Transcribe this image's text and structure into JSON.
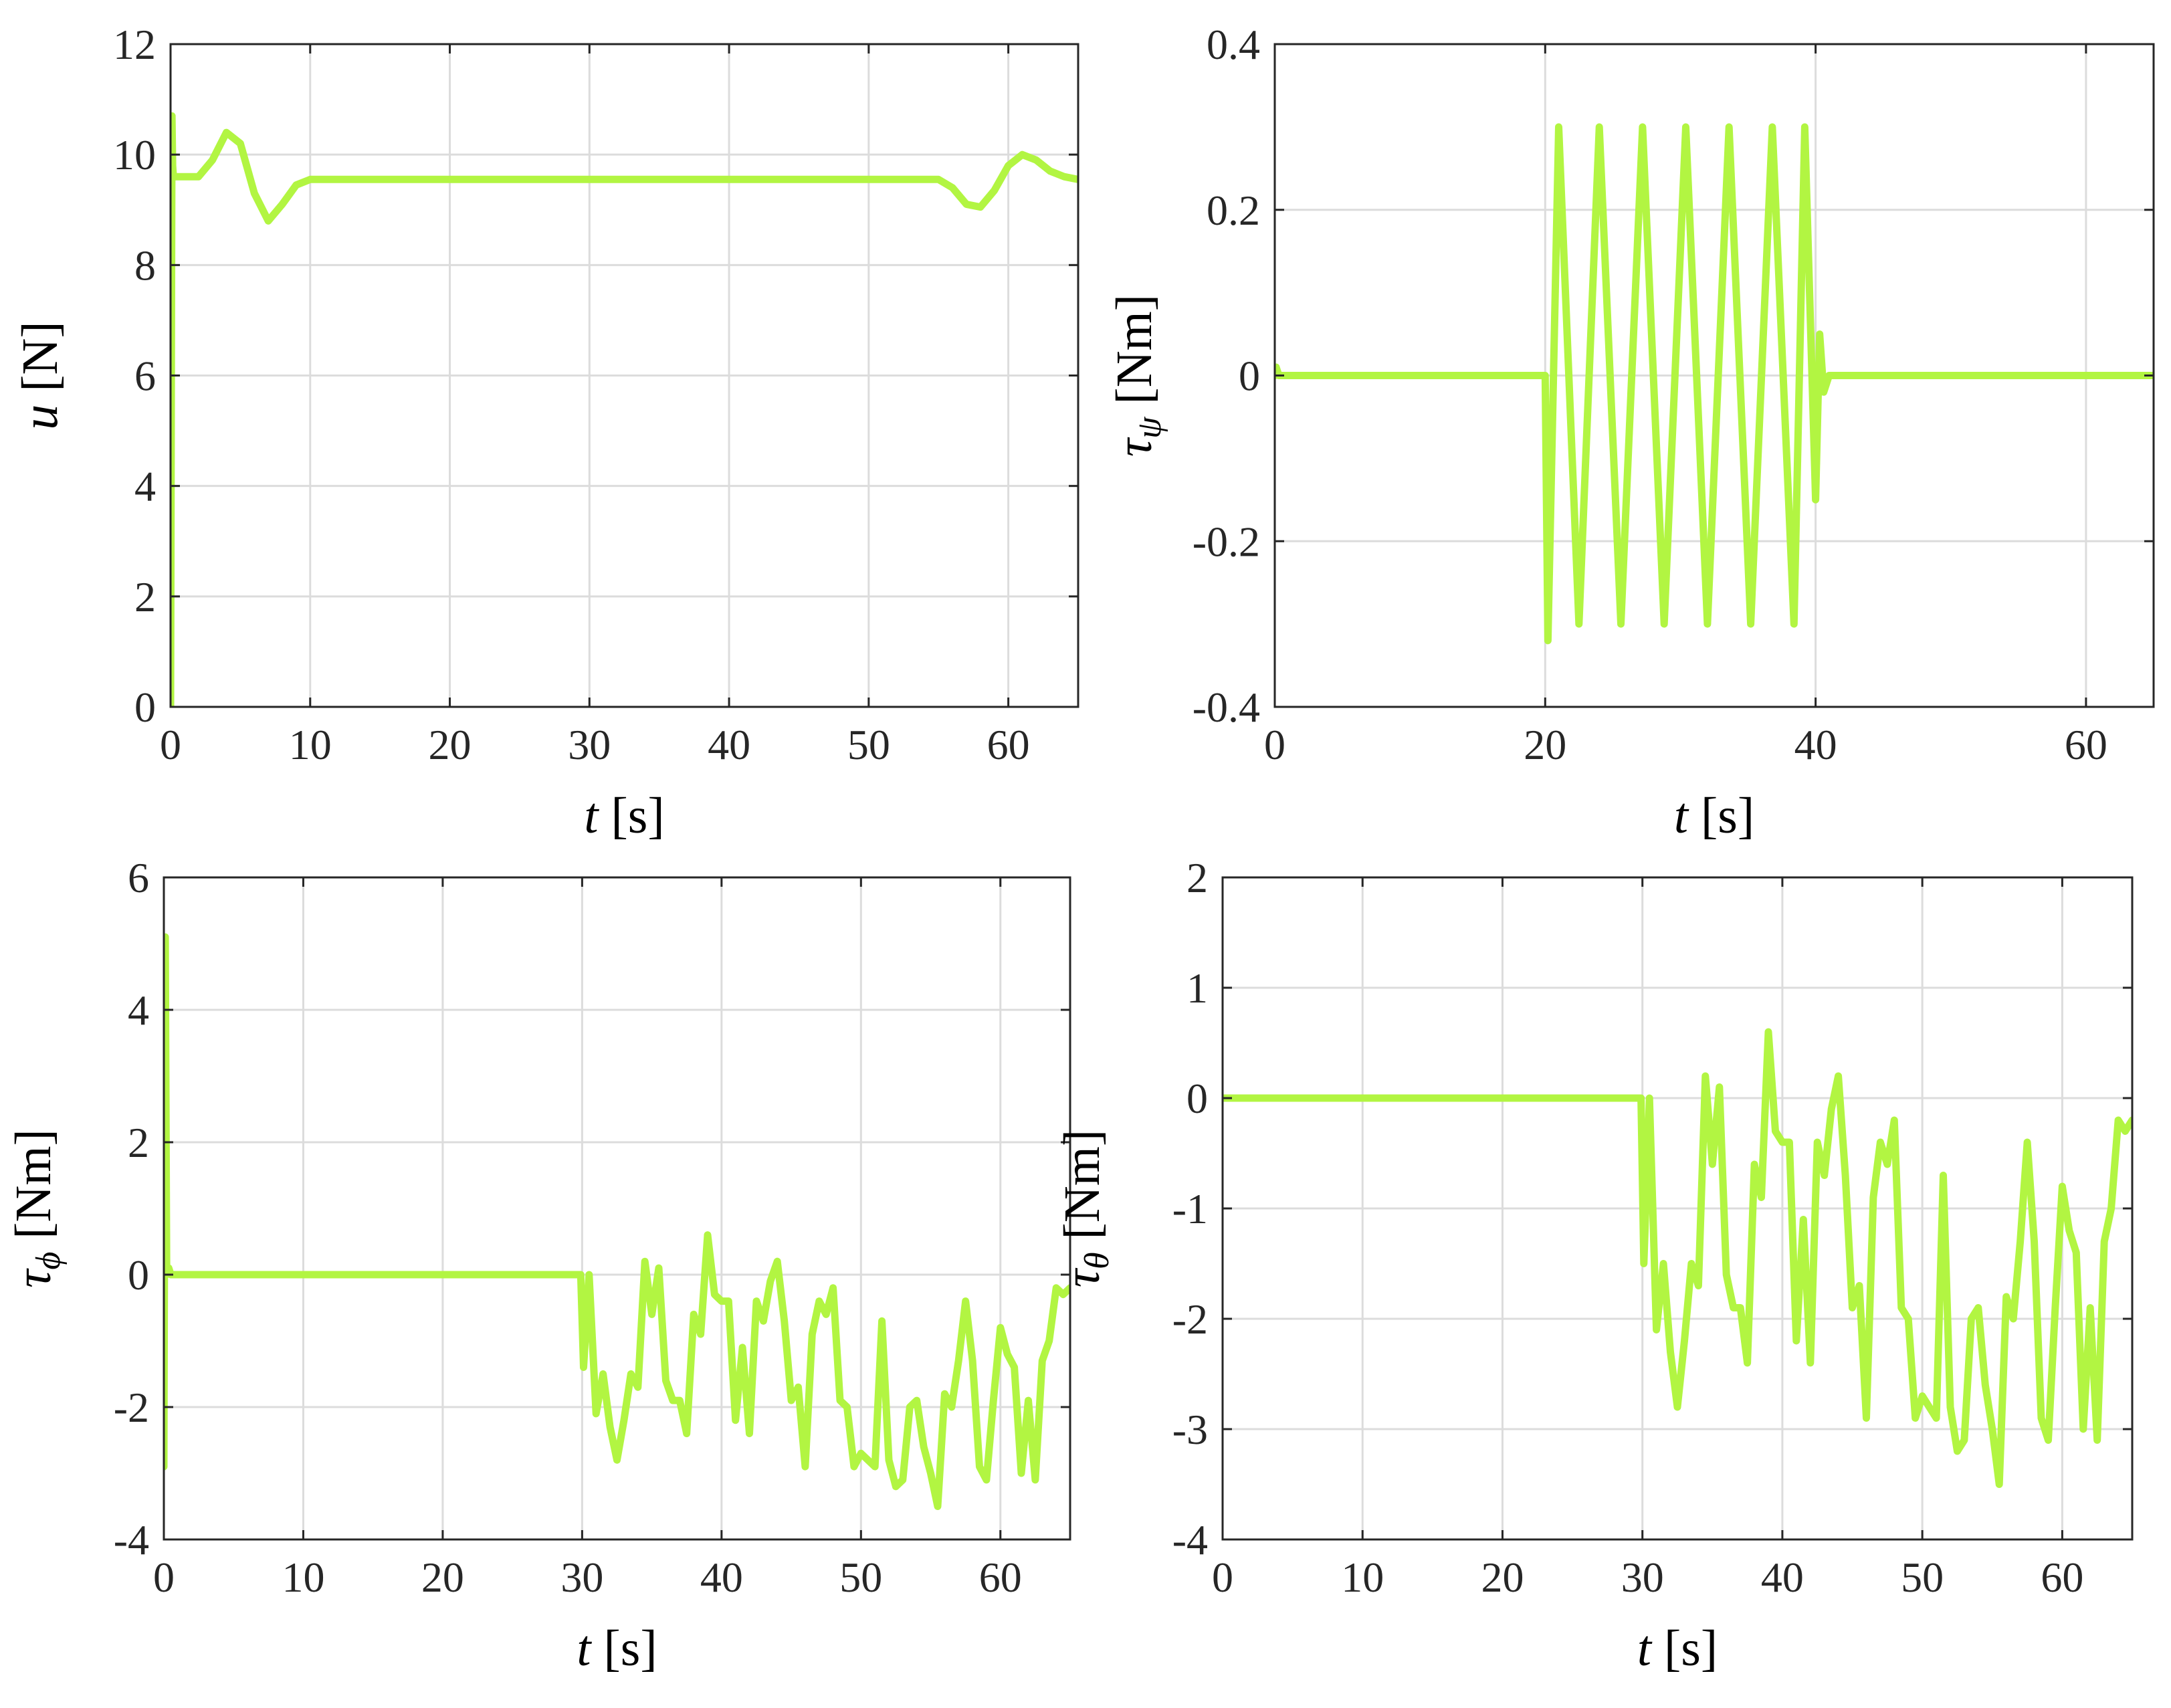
{
  "figure": {
    "series_color": "#b2f542"
  },
  "chart_data": [
    {
      "id": "u",
      "type": "line",
      "xlabel": {
        "symbol": "t",
        "unit": "[s]"
      },
      "ylabel": {
        "symbol": "u",
        "sub": "",
        "unit": "[N]"
      },
      "xlim": [
        0,
        65
      ],
      "ylim": [
        0,
        12
      ],
      "xticks": [
        "0",
        "10",
        "20",
        "30",
        "40",
        "50",
        "60"
      ],
      "yticks": [
        "0",
        "2",
        "4",
        "6",
        "8",
        "10",
        "12"
      ],
      "grid": true,
      "series": [
        {
          "x": [
            0,
            0.1,
            0.15,
            0.2,
            0.3,
            0.5,
            1,
            2,
            3,
            4,
            5,
            6,
            7,
            8,
            9,
            10,
            15,
            20,
            30,
            40,
            50,
            55,
            56,
            57,
            58,
            59,
            60,
            61,
            62,
            63,
            64,
            65
          ],
          "y": [
            0,
            10.7,
            9.8,
            9.6,
            9.6,
            9.6,
            9.6,
            9.6,
            9.9,
            10.4,
            10.2,
            9.3,
            8.8,
            9.1,
            9.45,
            9.55,
            9.55,
            9.55,
            9.55,
            9.55,
            9.55,
            9.55,
            9.4,
            9.1,
            9.05,
            9.35,
            9.8,
            10.0,
            9.9,
            9.7,
            9.6,
            9.55
          ]
        }
      ]
    },
    {
      "id": "tau-psi",
      "type": "line",
      "xlabel": {
        "symbol": "t",
        "unit": "[s]"
      },
      "ylabel": {
        "symbol": "τ",
        "sub": "ψ",
        "unit": "[Nm]"
      },
      "xlim": [
        0,
        65
      ],
      "ylim": [
        -0.4,
        0.4
      ],
      "xticks": [
        "0",
        "20",
        "40",
        "60"
      ],
      "yticks": [
        "-0.4",
        "-0.2",
        "0",
        "0.2",
        "0.4"
      ],
      "grid": true,
      "series": [
        {
          "x": [
            0,
            0.1,
            0.3,
            20,
            20.2,
            21,
            22.5,
            24,
            25.6,
            27.2,
            28.8,
            30.4,
            32,
            33.6,
            35.2,
            36.8,
            38.4,
            39.2,
            40,
            40.3,
            40.6,
            41,
            65
          ],
          "y": [
            0,
            0.01,
            0,
            0,
            -0.32,
            0.3,
            -0.3,
            0.3,
            -0.3,
            0.3,
            -0.3,
            0.3,
            -0.3,
            0.3,
            -0.3,
            0.3,
            -0.3,
            0.3,
            -0.15,
            0.05,
            -0.02,
            0,
            0
          ]
        }
      ]
    },
    {
      "id": "tau-phi",
      "type": "line",
      "xlabel": {
        "symbol": "t",
        "unit": "[s]"
      },
      "ylabel": {
        "symbol": "τ",
        "sub": "ϕ",
        "unit": "[Nm]"
      },
      "xlim": [
        0,
        65
      ],
      "ylim": [
        -4,
        6
      ],
      "xticks": [
        "0",
        "10",
        "20",
        "30",
        "40",
        "50",
        "60"
      ],
      "yticks": [
        "-4",
        "-2",
        "0",
        "2",
        "4",
        "6"
      ],
      "grid": true,
      "series": [
        {
          "x": [
            0,
            0.1,
            0.2,
            0.35,
            0.5,
            10,
            20,
            29.9,
            30.1,
            30.5,
            31,
            31.5,
            32,
            32.5,
            33,
            33.5,
            34,
            34.5,
            35,
            35.5,
            36,
            36.5,
            37,
            37.5,
            38,
            38.5,
            39,
            39.5,
            40,
            40.5,
            41,
            41.5,
            42,
            42.5,
            43,
            43.5,
            44,
            44.5,
            45,
            45.5,
            46,
            46.5,
            47,
            47.5,
            48,
            48.5,
            49,
            49.5,
            50,
            50.5,
            51,
            51.5,
            52,
            52.5,
            53,
            53.5,
            54,
            54.5,
            55,
            55.5,
            56,
            56.5,
            57,
            57.5,
            58,
            58.5,
            59,
            59.5,
            60,
            60.5,
            61,
            61.5,
            62,
            62.5,
            63,
            63.5,
            64,
            64.5,
            65
          ],
          "y": [
            -2.9,
            5.1,
            0,
            0.1,
            0,
            0,
            0,
            0,
            -1.4,
            0,
            -2.1,
            -1.5,
            -2.3,
            -2.8,
            -2.2,
            -1.5,
            -1.7,
            0.2,
            -0.6,
            0.1,
            -1.6,
            -1.9,
            -1.9,
            -2.4,
            -0.6,
            -0.9,
            0.6,
            -0.3,
            -0.4,
            -0.4,
            -2.2,
            -1.1,
            -2.4,
            -0.4,
            -0.7,
            -0.1,
            0.2,
            -0.7,
            -1.9,
            -1.7,
            -2.9,
            -0.9,
            -0.4,
            -0.6,
            -0.2,
            -1.9,
            -2.0,
            -2.9,
            -2.7,
            -2.8,
            -2.9,
            -0.7,
            -2.8,
            -3.2,
            -3.1,
            -2.0,
            -1.9,
            -2.6,
            -3.0,
            -3.5,
            -1.8,
            -2.0,
            -1.3,
            -0.4,
            -1.3,
            -2.9,
            -3.1,
            -1.9,
            -0.8,
            -1.2,
            -1.4,
            -3.0,
            -1.9,
            -3.1,
            -1.3,
            -1.0,
            -0.2,
            -0.3,
            -0.2
          ]
        }
      ]
    },
    {
      "id": "tau-theta",
      "type": "line",
      "xlabel": {
        "symbol": "t",
        "unit": "[s]"
      },
      "ylabel": {
        "symbol": "τ",
        "sub": "θ",
        "unit": "[Nm]"
      },
      "xlim": [
        0,
        65
      ],
      "ylim": [
        -4,
        2
      ],
      "xticks": [
        "0",
        "10",
        "20",
        "30",
        "40",
        "50",
        "60"
      ],
      "yticks": [
        "-4",
        "-3",
        "-2",
        "-1",
        "0",
        "1",
        "2"
      ],
      "grid": true,
      "series": [
        {
          "x": [
            0,
            10,
            20,
            29.9,
            30.1,
            30.5,
            31,
            31.5,
            32,
            32.5,
            33,
            33.5,
            34,
            34.5,
            35,
            35.5,
            36,
            36.5,
            37,
            37.5,
            38,
            38.5,
            39,
            39.5,
            40,
            40.5,
            41,
            41.5,
            42,
            42.5,
            43,
            43.5,
            44,
            44.5,
            45,
            45.5,
            46,
            46.5,
            47,
            47.5,
            48,
            48.5,
            49,
            49.5,
            50,
            50.5,
            51,
            51.5,
            52,
            52.5,
            53,
            53.5,
            54,
            54.5,
            55,
            55.5,
            56,
            56.5,
            57,
            57.5,
            58,
            58.5,
            59,
            59.5,
            60,
            60.5,
            61,
            61.5,
            62,
            62.5,
            63,
            63.5,
            64,
            64.5,
            65
          ],
          "y": [
            0,
            0,
            0,
            0,
            -1.5,
            0,
            -2.1,
            -1.5,
            -2.3,
            -2.8,
            -2.2,
            -1.5,
            -1.7,
            0.2,
            -0.6,
            0.1,
            -1.6,
            -1.9,
            -1.9,
            -2.4,
            -0.6,
            -0.9,
            0.6,
            -0.3,
            -0.4,
            -0.4,
            -2.2,
            -1.1,
            -2.4,
            -0.4,
            -0.7,
            -0.1,
            0.2,
            -0.7,
            -1.9,
            -1.7,
            -2.9,
            -0.9,
            -0.4,
            -0.6,
            -0.2,
            -1.9,
            -2.0,
            -2.9,
            -2.7,
            -2.8,
            -2.9,
            -0.7,
            -2.8,
            -3.2,
            -3.1,
            -2.0,
            -1.9,
            -2.6,
            -3.0,
            -3.5,
            -1.8,
            -2.0,
            -1.3,
            -0.4,
            -1.3,
            -2.9,
            -3.1,
            -1.9,
            -0.8,
            -1.2,
            -1.4,
            -3.0,
            -1.9,
            -3.1,
            -1.3,
            -1.0,
            -0.2,
            -0.3,
            -0.2
          ]
        }
      ]
    }
  ]
}
